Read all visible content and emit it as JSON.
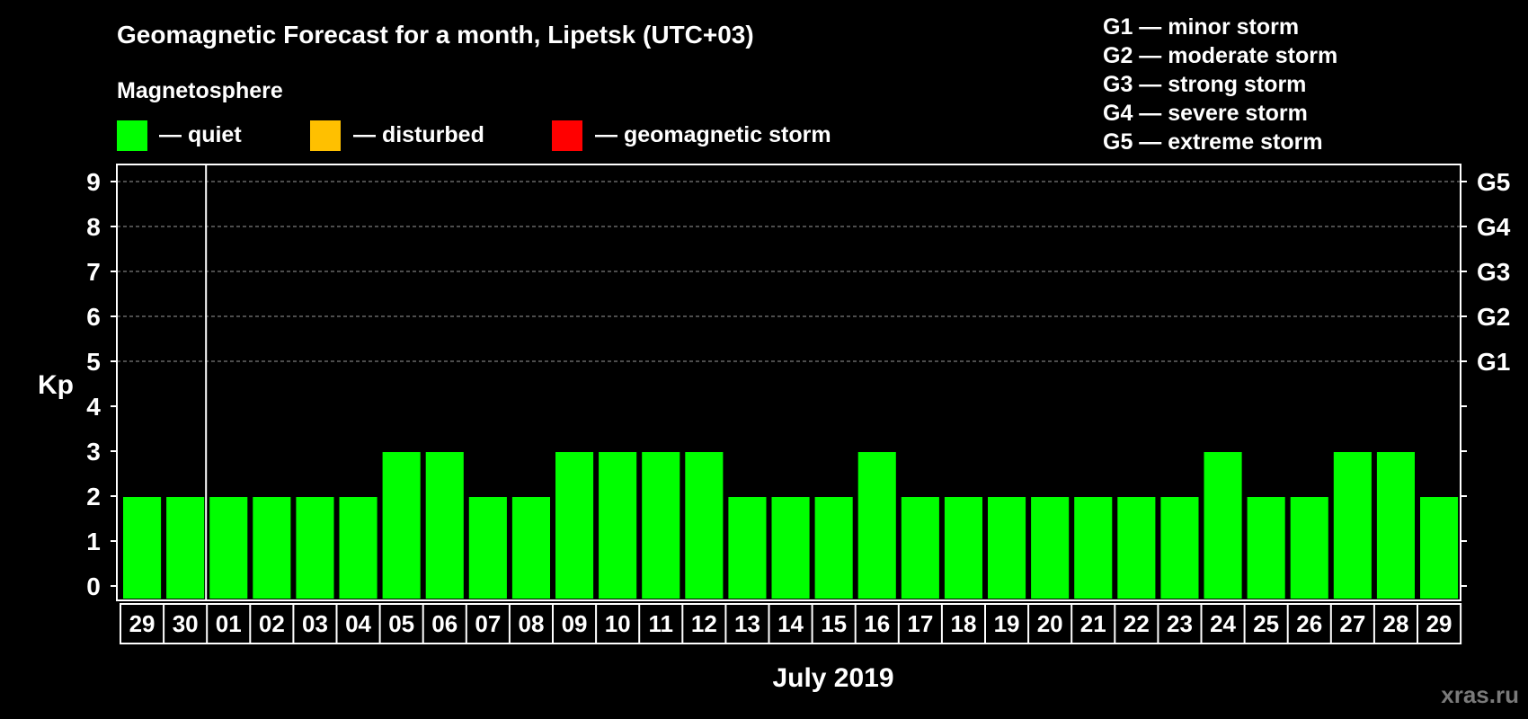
{
  "chart_data": {
    "type": "bar",
    "title": "Geomagnetic Forecast for a month, Lipetsk (UTC+03)",
    "subtitle": "Magnetosphere",
    "legend": [
      {
        "label": "— quiet",
        "color": "#00ff00"
      },
      {
        "label": "— disturbed",
        "color": "#ffc000"
      },
      {
        "label": "— geomagnetic storm",
        "color": "#ff0000"
      }
    ],
    "storm_scale": [
      "G1 — minor storm",
      "G2 — moderate storm",
      "G3 — strong storm",
      "G4 — severe storm",
      "G5 — extreme storm"
    ],
    "ylabel": "Kp",
    "xlabel": "July 2019",
    "ylim": [
      0,
      9
    ],
    "yticks": [
      "0",
      "1",
      "2",
      "3",
      "4",
      "5",
      "6",
      "7",
      "8",
      "9"
    ],
    "right_levels": [
      {
        "kp": 5,
        "label": "G1"
      },
      {
        "kp": 6,
        "label": "G2"
      },
      {
        "kp": 7,
        "label": "G3"
      },
      {
        "kp": 8,
        "label": "G4"
      },
      {
        "kp": 9,
        "label": "G5"
      }
    ],
    "month_separator_after_index": 1,
    "categories": [
      "29",
      "30",
      "01",
      "02",
      "03",
      "04",
      "05",
      "06",
      "07",
      "08",
      "09",
      "10",
      "11",
      "12",
      "13",
      "14",
      "15",
      "16",
      "17",
      "18",
      "19",
      "20",
      "21",
      "22",
      "23",
      "24",
      "25",
      "26",
      "27",
      "28",
      "29"
    ],
    "values": [
      2,
      2,
      2,
      2,
      2,
      2,
      3,
      3,
      2,
      2,
      3,
      3,
      3,
      3,
      2,
      2,
      2,
      3,
      2,
      2,
      2,
      2,
      2,
      2,
      2,
      3,
      2,
      2,
      3,
      3,
      2
    ],
    "colors": {
      "quiet": "#00ff00",
      "disturbed": "#ffc000",
      "storm": "#ff0000",
      "grid": "#9a9a9a"
    }
  },
  "watermark": "xras.ru"
}
